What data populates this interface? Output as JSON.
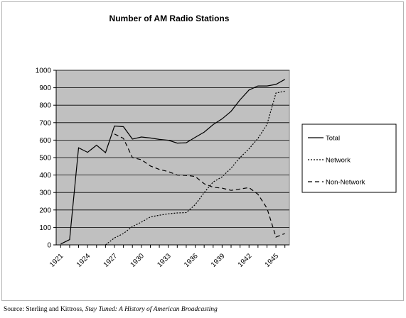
{
  "chart_data": {
    "type": "line",
    "title": "Number of AM Radio Stations",
    "x": [
      1921,
      1922,
      1923,
      1924,
      1925,
      1926,
      1927,
      1928,
      1929,
      1930,
      1931,
      1932,
      1933,
      1934,
      1935,
      1936,
      1937,
      1938,
      1939,
      1940,
      1941,
      1942,
      1943,
      1944,
      1945,
      1946
    ],
    "x_tick_labels": [
      "1921",
      "1924",
      "1927",
      "1930",
      "1933",
      "1936",
      "1939",
      "1942",
      "1945"
    ],
    "ylim": [
      0,
      1000
    ],
    "y_ticks": [
      0,
      100,
      200,
      300,
      400,
      500,
      600,
      700,
      800,
      900,
      1000
    ],
    "series": [
      {
        "name": "Total",
        "dash": "solid",
        "values": [
          5,
          30,
          556,
          530,
          571,
          528,
          681,
          677,
          606,
          618,
          612,
          604,
          599,
          583,
          585,
          616,
          646,
          689,
          722,
          765,
          831,
          887,
          910,
          910,
          919,
          948
        ]
      },
      {
        "name": "Network",
        "dash": "dotted",
        "values": [
          null,
          null,
          null,
          null,
          null,
          0,
          40,
          65,
          105,
          130,
          160,
          170,
          178,
          183,
          185,
          230,
          300,
          360,
          390,
          440,
          500,
          550,
          610,
          690,
          870,
          880
        ]
      },
      {
        "name": "Non-Network",
        "dash": "dashed",
        "values": [
          null,
          null,
          null,
          null,
          null,
          null,
          635,
          610,
          500,
          488,
          452,
          432,
          420,
          400,
          398,
          392,
          350,
          330,
          325,
          312,
          320,
          328,
          290,
          210,
          45,
          65
        ]
      }
    ],
    "plot_background": "#c0c0c0",
    "legend_position": "right",
    "grid": "horizontal"
  },
  "source": {
    "prefix": "Source: Sterling and Kittross, ",
    "title": "Stay Tuned: A History of American Broadcasting"
  }
}
